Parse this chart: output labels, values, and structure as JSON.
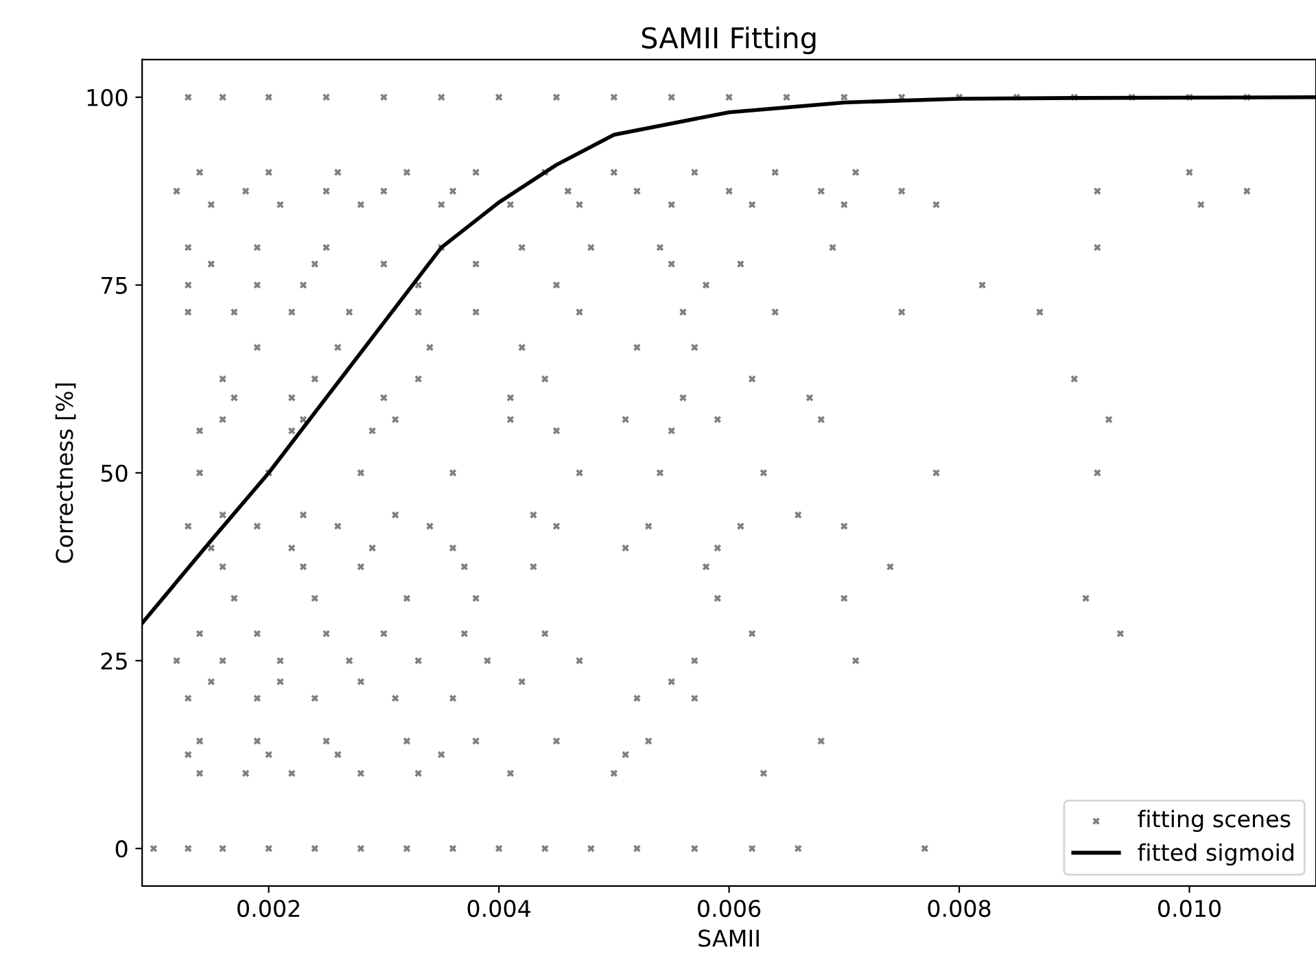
{
  "chart_data": {
    "type": "scatter",
    "title": "SAMII Fitting",
    "xlabel": "SAMII",
    "ylabel": "Correctness [%]",
    "xlim": [
      0.0009,
      0.0111
    ],
    "xticks": [
      {
        "value": 0.002,
        "label": "0.002"
      },
      {
        "value": 0.004,
        "label": "0.004"
      },
      {
        "value": 0.006,
        "label": "0.006"
      },
      {
        "value": 0.008,
        "label": "0.008"
      },
      {
        "value": 0.01,
        "label": "0.010"
      }
    ],
    "ylim": [
      -5,
      105
    ],
    "yticks": [
      0,
      25,
      50,
      75,
      100
    ],
    "grid": false,
    "legend": "bottom right",
    "series": [
      {
        "name": "fitting scenes",
        "marker": "cross",
        "color": "#808080",
        "x": [
          0.0013,
          0.0016,
          0.002,
          0.0025,
          0.003,
          0.0035,
          0.004,
          0.0045,
          0.005,
          0.0055,
          0.006,
          0.0065,
          0.007,
          0.0075,
          0.008,
          0.0085,
          0.009,
          0.0095,
          0.01,
          0.0105,
          0.001,
          0.0013,
          0.0016,
          0.002,
          0.0024,
          0.0028,
          0.0032,
          0.0036,
          0.004,
          0.0044,
          0.0048,
          0.0052,
          0.0057,
          0.0062,
          0.0066,
          0.0077,
          0.0014,
          0.002,
          0.0026,
          0.0032,
          0.0038,
          0.0044,
          0.005,
          0.0057,
          0.0064,
          0.0071,
          0.01,
          0.0012,
          0.0018,
          0.0025,
          0.003,
          0.0036,
          0.0046,
          0.0052,
          0.006,
          0.0068,
          0.0075,
          0.0092,
          0.0105,
          0.0015,
          0.0021,
          0.0028,
          0.0035,
          0.0041,
          0.0047,
          0.0055,
          0.0062,
          0.007,
          0.0078,
          0.0101,
          0.0013,
          0.0019,
          0.0025,
          0.0035,
          0.0042,
          0.0048,
          0.0054,
          0.0069,
          0.0092,
          0.0015,
          0.0024,
          0.003,
          0.0038,
          0.0055,
          0.0061,
          0.0013,
          0.0019,
          0.0023,
          0.0033,
          0.0045,
          0.0058,
          0.0082,
          0.0013,
          0.0017,
          0.0022,
          0.0027,
          0.0033,
          0.0038,
          0.0047,
          0.0056,
          0.0064,
          0.0075,
          0.0087,
          0.0019,
          0.0026,
          0.0034,
          0.0042,
          0.0052,
          0.0057,
          0.0016,
          0.0024,
          0.0033,
          0.0044,
          0.0062,
          0.009,
          0.0017,
          0.0022,
          0.003,
          0.0041,
          0.0056,
          0.0067,
          0.0016,
          0.0023,
          0.0031,
          0.0041,
          0.0051,
          0.0059,
          0.0068,
          0.0093,
          0.0014,
          0.0022,
          0.0029,
          0.0045,
          0.0055,
          0.0014,
          0.002,
          0.0028,
          0.0036,
          0.0047,
          0.0054,
          0.0063,
          0.0078,
          0.0092,
          0.0016,
          0.0023,
          0.0031,
          0.0043,
          0.0066,
          0.0013,
          0.0019,
          0.0026,
          0.0034,
          0.0045,
          0.0053,
          0.0061,
          0.007,
          0.0015,
          0.0022,
          0.0029,
          0.0036,
          0.0051,
          0.0059,
          0.0016,
          0.0023,
          0.0028,
          0.0037,
          0.0043,
          0.0058,
          0.0074,
          0.0017,
          0.0024,
          0.0032,
          0.0038,
          0.0059,
          0.007,
          0.0091,
          0.0014,
          0.0019,
          0.0025,
          0.003,
          0.0037,
          0.0044,
          0.0062,
          0.0094,
          0.0012,
          0.0016,
          0.0021,
          0.0027,
          0.0033,
          0.0039,
          0.0047,
          0.0057,
          0.0071,
          0.0015,
          0.0021,
          0.0028,
          0.0042,
          0.0055,
          0.0013,
          0.0019,
          0.0024,
          0.0031,
          0.0036,
          0.0052,
          0.0057,
          0.0014,
          0.0019,
          0.0025,
          0.0032,
          0.0038,
          0.0045,
          0.0053,
          0.0068,
          0.0013,
          0.002,
          0.0026,
          0.0035,
          0.0051,
          0.0014,
          0.0018,
          0.0022,
          0.0028,
          0.0033,
          0.0041,
          0.005,
          0.0063
        ],
        "values": [
          100,
          100,
          100,
          100,
          100,
          100,
          100,
          100,
          100,
          100,
          100,
          100,
          100,
          100,
          100,
          100,
          100,
          100,
          100,
          100,
          0,
          0,
          0,
          0,
          0,
          0,
          0,
          0,
          0,
          0,
          0,
          0,
          0,
          0,
          0,
          0,
          90,
          90,
          90,
          90,
          90,
          90,
          90,
          90,
          90,
          90,
          90,
          87.5,
          87.5,
          87.5,
          87.5,
          87.5,
          87.5,
          87.5,
          87.5,
          87.5,
          87.5,
          87.5,
          87.5,
          85.7,
          85.7,
          85.7,
          85.7,
          85.7,
          85.7,
          85.7,
          85.7,
          85.7,
          85.7,
          85.7,
          80,
          80,
          80,
          80,
          80,
          80,
          80,
          80,
          80,
          77.8,
          77.8,
          77.8,
          77.8,
          77.8,
          77.8,
          75,
          75,
          75,
          75,
          75,
          75,
          75,
          71.4,
          71.4,
          71.4,
          71.4,
          71.4,
          71.4,
          71.4,
          71.4,
          71.4,
          71.4,
          71.4,
          66.7,
          66.7,
          66.7,
          66.7,
          66.7,
          66.7,
          62.5,
          62.5,
          62.5,
          62.5,
          62.5,
          62.5,
          60,
          60,
          60,
          60,
          60,
          60,
          57.1,
          57.1,
          57.1,
          57.1,
          57.1,
          57.1,
          57.1,
          57.1,
          55.6,
          55.6,
          55.6,
          55.6,
          55.6,
          50,
          50,
          50,
          50,
          50,
          50,
          50,
          50,
          50,
          44.4,
          44.4,
          44.4,
          44.4,
          44.4,
          42.9,
          42.9,
          42.9,
          42.9,
          42.9,
          42.9,
          42.9,
          42.9,
          40,
          40,
          40,
          40,
          40,
          40,
          37.5,
          37.5,
          37.5,
          37.5,
          37.5,
          37.5,
          37.5,
          33.3,
          33.3,
          33.3,
          33.3,
          33.3,
          33.3,
          33.3,
          28.6,
          28.6,
          28.6,
          28.6,
          28.6,
          28.6,
          28.6,
          28.6,
          25,
          25,
          25,
          25,
          25,
          25,
          25,
          25,
          25,
          22.2,
          22.2,
          22.2,
          22.2,
          22.2,
          20,
          20,
          20,
          20,
          20,
          20,
          20,
          14.3,
          14.3,
          14.3,
          14.3,
          14.3,
          14.3,
          14.3,
          14.3,
          12.5,
          12.5,
          12.5,
          12.5,
          12.5,
          10,
          10,
          10,
          10,
          10,
          10,
          10,
          10
        ]
      },
      {
        "name": "fitted sigmoid",
        "type": "line",
        "line_style": "solid",
        "marker": "none",
        "color": "#000000",
        "x": [
          0.0009,
          0.0015,
          0.002,
          0.0025,
          0.003,
          0.0035,
          0.004,
          0.0045,
          0.005,
          0.006,
          0.007,
          0.008,
          0.009,
          0.0111
        ],
        "values": [
          30,
          41,
          50,
          60,
          70,
          80,
          86,
          91,
          95,
          98,
          99.3,
          99.8,
          99.9,
          100
        ]
      }
    ]
  }
}
